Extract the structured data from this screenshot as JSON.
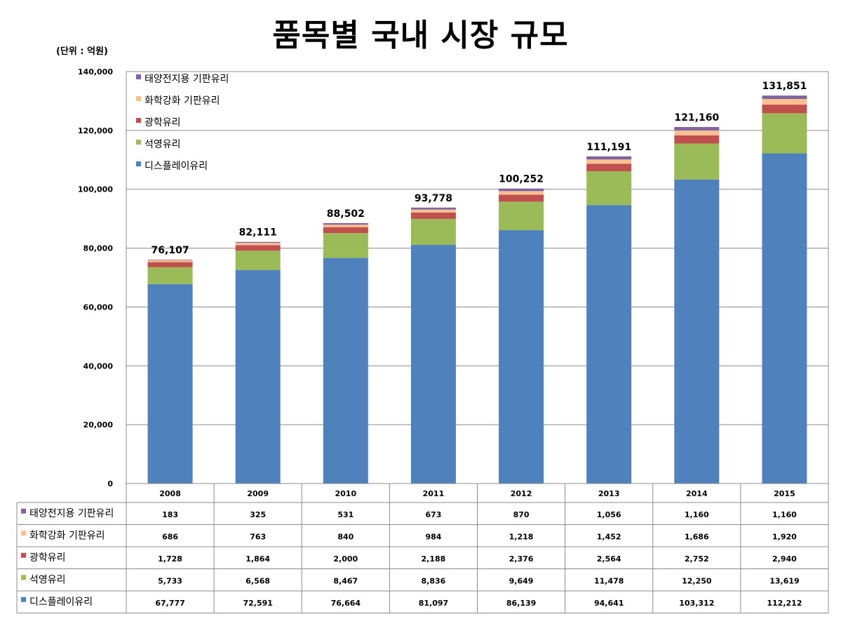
{
  "title": "품목별 국내 시장 규모",
  "unit_label": "(단위 : 억원)",
  "chart_data": {
    "type": "bar",
    "stacked": true,
    "title": "품목별 국내 시장 규모",
    "unit": "(단위 : 억원)",
    "categories": [
      "2008",
      "2009",
      "2010",
      "2011",
      "2012",
      "2013",
      "2014",
      "2015"
    ],
    "ylim": [
      0,
      140000
    ],
    "yticks": [
      0,
      20000,
      40000,
      60000,
      80000,
      100000,
      120000,
      140000
    ],
    "ytick_labels": [
      "0",
      "20,000",
      "40,000",
      "60,000",
      "80,000",
      "100,000",
      "120,000",
      "140,000"
    ],
    "grid": true,
    "series": [
      {
        "name": "디스플레이유리",
        "color": "#4F81BD",
        "values": [
          67777,
          72591,
          76664,
          81097,
          86139,
          94641,
          103312,
          112212
        ],
        "labels": [
          "67,777",
          "72,591",
          "76,664",
          "81,097",
          "86,139",
          "94,641",
          "103,312",
          "112,212"
        ]
      },
      {
        "name": "석영유리",
        "color": "#9BBB59",
        "values": [
          5733,
          6568,
          8467,
          8836,
          9649,
          11478,
          12250,
          13619
        ],
        "labels": [
          "5,733",
          "6,568",
          "8,467",
          "8,836",
          "9,649",
          "11,478",
          "12,250",
          "13,619"
        ]
      },
      {
        "name": "광학유리",
        "color": "#C0504D",
        "values": [
          1728,
          1864,
          2000,
          2188,
          2376,
          2564,
          2752,
          2940
        ],
        "labels": [
          "1,728",
          "1,864",
          "2,000",
          "2,188",
          "2,376",
          "2,564",
          "2,752",
          "2,940"
        ]
      },
      {
        "name": "화학강화 기판유리",
        "color": "#FAC090",
        "values": [
          686,
          763,
          840,
          984,
          1218,
          1452,
          1686,
          1920
        ],
        "labels": [
          "686",
          "763",
          "840",
          "984",
          "1,218",
          "1,452",
          "1,686",
          "1,920"
        ]
      },
      {
        "name": "태양전지용 기판유리",
        "color": "#8064A2",
        "values": [
          183,
          325,
          531,
          673,
          870,
          1056,
          1160,
          1160
        ],
        "labels": [
          "183",
          "325",
          "531",
          "673",
          "870",
          "1,056",
          "1,160",
          "1,160"
        ]
      }
    ],
    "totals": [
      76107,
      82111,
      88502,
      93778,
      100252,
      111191,
      121160,
      131851
    ],
    "total_labels": [
      "76,107",
      "82,111",
      "88,502",
      "93,778",
      "100,252",
      "111,191",
      "121,160",
      "131,851"
    ],
    "legend_position": "top-left"
  }
}
